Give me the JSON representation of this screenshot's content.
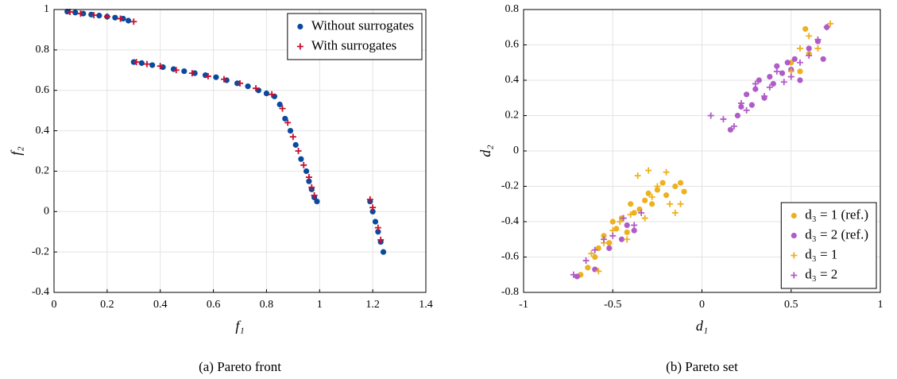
{
  "chart_data": [
    {
      "type": "scatter",
      "caption": "(a) Pareto front",
      "xlabel": "f₁",
      "ylabel": "f₂",
      "xlim": [
        0,
        1.4
      ],
      "xticks": [
        0,
        0.2,
        0.4,
        0.6,
        0.8,
        1,
        1.2,
        1.4
      ],
      "ylim": [
        -0.4,
        1
      ],
      "yticks": [
        -0.4,
        -0.2,
        0,
        0.2,
        0.4,
        0.6,
        0.8,
        1
      ],
      "grid": true,
      "legend": "upper right",
      "series": [
        {
          "name": "Without surrogates",
          "color": "#0a4a9e",
          "marker": "dot",
          "x": [
            0.05,
            0.08,
            0.11,
            0.14,
            0.17,
            0.2,
            0.23,
            0.26,
            0.28,
            0.3,
            0.33,
            0.37,
            0.41,
            0.45,
            0.49,
            0.53,
            0.57,
            0.61,
            0.65,
            0.69,
            0.73,
            0.77,
            0.8,
            0.83,
            0.85,
            0.87,
            0.89,
            0.91,
            0.93,
            0.95,
            0.96,
            0.97,
            0.98,
            0.99,
            1.19,
            1.2,
            1.21,
            1.22,
            1.23,
            1.24
          ],
          "values": [
            0.99,
            0.985,
            0.98,
            0.975,
            0.97,
            0.965,
            0.96,
            0.955,
            0.945,
            0.74,
            0.735,
            0.725,
            0.715,
            0.705,
            0.695,
            0.685,
            0.675,
            0.665,
            0.65,
            0.635,
            0.62,
            0.6,
            0.585,
            0.57,
            0.53,
            0.46,
            0.4,
            0.33,
            0.26,
            0.2,
            0.15,
            0.11,
            0.07,
            0.05,
            0.05,
            0.0,
            -0.05,
            -0.1,
            -0.15,
            -0.2
          ]
        },
        {
          "name": "With surrogates",
          "color": "#c8102e",
          "marker": "plus",
          "x": [
            0.06,
            0.1,
            0.15,
            0.2,
            0.25,
            0.3,
            0.31,
            0.35,
            0.4,
            0.46,
            0.52,
            0.58,
            0.64,
            0.7,
            0.76,
            0.82,
            0.86,
            0.88,
            0.9,
            0.92,
            0.94,
            0.96,
            0.97,
            0.98,
            1.19,
            1.2,
            1.22,
            1.23
          ],
          "values": [
            0.988,
            0.98,
            0.972,
            0.965,
            0.955,
            0.94,
            0.74,
            0.73,
            0.72,
            0.7,
            0.685,
            0.67,
            0.655,
            0.635,
            0.61,
            0.58,
            0.51,
            0.44,
            0.37,
            0.3,
            0.23,
            0.17,
            0.12,
            0.08,
            0.06,
            0.02,
            -0.08,
            -0.14
          ]
        }
      ]
    },
    {
      "type": "scatter",
      "caption": "(b) Pareto set",
      "xlabel": "d₁",
      "ylabel": "d₂",
      "xlim": [
        -1,
        1
      ],
      "xticks": [
        -1,
        -0.5,
        0,
        0.5,
        1
      ],
      "ylim": [
        -0.8,
        0.8
      ],
      "yticks": [
        -0.8,
        -0.6,
        -0.4,
        -0.2,
        0,
        0.2,
        0.4,
        0.6,
        0.8
      ],
      "grid": true,
      "legend": "lower right",
      "series": [
        {
          "name": "d₃ = 1 (ref.)",
          "color": "#edb120",
          "marker": "dot",
          "x": [
            -0.68,
            -0.64,
            -0.6,
            -0.58,
            -0.55,
            -0.52,
            -0.5,
            -0.48,
            -0.45,
            -0.42,
            -0.4,
            -0.38,
            -0.35,
            -0.32,
            -0.3,
            -0.28,
            -0.25,
            -0.22,
            -0.2,
            -0.15,
            -0.12,
            -0.1,
            0.5,
            0.55,
            0.58,
            0.6
          ],
          "values": [
            -0.7,
            -0.66,
            -0.6,
            -0.55,
            -0.48,
            -0.52,
            -0.4,
            -0.44,
            -0.38,
            -0.46,
            -0.3,
            -0.35,
            -0.33,
            -0.28,
            -0.24,
            -0.3,
            -0.22,
            -0.18,
            -0.25,
            -0.2,
            -0.18,
            -0.23,
            0.5,
            0.45,
            0.69,
            0.55
          ]
        },
        {
          "name": "d₃ = 2 (ref.)",
          "color": "#b05cc8",
          "marker": "dot",
          "x": [
            0.16,
            0.2,
            0.22,
            0.25,
            0.28,
            0.3,
            0.32,
            0.35,
            0.38,
            0.4,
            0.42,
            0.45,
            0.48,
            0.5,
            0.52,
            0.55,
            0.6,
            0.65,
            0.68,
            0.7,
            -0.7,
            -0.6,
            -0.52,
            -0.45,
            -0.42,
            -0.38
          ],
          "values": [
            0.12,
            0.2,
            0.25,
            0.32,
            0.26,
            0.35,
            0.4,
            0.3,
            0.42,
            0.38,
            0.48,
            0.44,
            0.5,
            0.46,
            0.52,
            0.4,
            0.58,
            0.62,
            0.52,
            0.7,
            -0.71,
            -0.67,
            -0.55,
            -0.5,
            -0.42,
            -0.45
          ]
        },
        {
          "name": "d₃ = 1",
          "color": "#edb120",
          "marker": "plus",
          "x": [
            -0.62,
            -0.58,
            -0.55,
            -0.5,
            -0.46,
            -0.42,
            -0.4,
            -0.36,
            -0.32,
            -0.3,
            -0.28,
            -0.25,
            -0.2,
            -0.18,
            -0.15,
            -0.12,
            0.5,
            0.55,
            0.6,
            0.65,
            0.72
          ],
          "values": [
            -0.58,
            -0.68,
            -0.52,
            -0.45,
            -0.4,
            -0.5,
            -0.36,
            -0.14,
            -0.38,
            -0.11,
            -0.26,
            -0.2,
            -0.12,
            -0.3,
            -0.35,
            -0.3,
            0.45,
            0.58,
            0.65,
            0.58,
            0.72
          ]
        },
        {
          "name": "d₃ = 2",
          "color": "#b05cc8",
          "marker": "plus",
          "x": [
            -0.72,
            -0.65,
            -0.6,
            -0.55,
            -0.5,
            -0.44,
            -0.38,
            -0.34,
            0.05,
            0.12,
            0.18,
            0.22,
            0.25,
            0.3,
            0.35,
            0.38,
            0.42,
            0.46,
            0.5,
            0.55,
            0.6,
            0.65,
            0.7
          ],
          "values": [
            -0.7,
            -0.62,
            -0.56,
            -0.5,
            -0.48,
            -0.38,
            -0.42,
            -0.35,
            0.2,
            0.18,
            0.14,
            0.27,
            0.23,
            0.38,
            0.31,
            0.36,
            0.45,
            0.39,
            0.42,
            0.5,
            0.54,
            0.63,
            0.7
          ]
        }
      ]
    }
  ]
}
